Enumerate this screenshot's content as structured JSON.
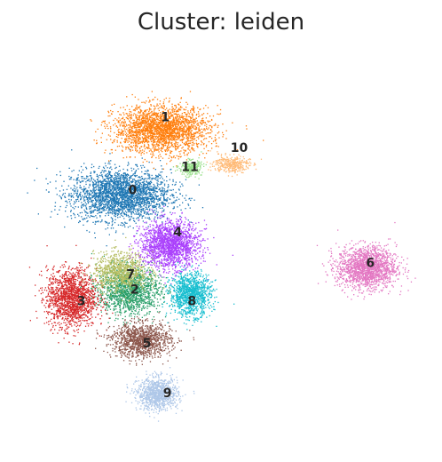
{
  "title": "Cluster: leiden",
  "chart_data": {
    "type": "scatter",
    "title": "Cluster: leiden",
    "xlabel": "",
    "ylabel": "",
    "xlim": [
      0,
      100
    ],
    "ylim": [
      0,
      100
    ],
    "legend": "on data",
    "grid": false,
    "series": [
      {
        "name": "0",
        "color": "#1f77b4",
        "center": [
          25.0,
          62.0
        ],
        "spread": [
          11.0,
          6.0
        ],
        "n": 2600
      },
      {
        "name": "1",
        "color": "#ff7f0e",
        "center": [
          35.0,
          79.0
        ],
        "spread": [
          10.5,
          5.5
        ],
        "n": 2400
      },
      {
        "name": "2",
        "color": "#279e68",
        "center": [
          27.0,
          37.0
        ],
        "spread": [
          7.0,
          5.5
        ],
        "n": 1400
      },
      {
        "name": "3",
        "color": "#d62728",
        "center": [
          13.0,
          35.0
        ],
        "spread": [
          5.5,
          7.0
        ],
        "n": 1600
      },
      {
        "name": "4",
        "color": "#aa40fc",
        "center": [
          37.0,
          49.0
        ],
        "spread": [
          6.5,
          5.5
        ],
        "n": 1800
      },
      {
        "name": "5",
        "color": "#8c564b",
        "center": [
          30.0,
          24.0
        ],
        "spread": [
          6.5,
          4.0
        ],
        "n": 1200
      },
      {
        "name": "6",
        "color": "#e377c2",
        "center": [
          85.0,
          43.0
        ],
        "spread": [
          6.5,
          5.0
        ],
        "n": 1700
      },
      {
        "name": "7",
        "color": "#b5bd61",
        "center": [
          25.0,
          42.0
        ],
        "spread": [
          6.0,
          4.5
        ],
        "n": 900
      },
      {
        "name": "8",
        "color": "#17becf",
        "center": [
          42.0,
          36.0
        ],
        "spread": [
          4.5,
          5.0
        ],
        "n": 1200
      },
      {
        "name": "9",
        "color": "#aec7e8",
        "center": [
          34.0,
          10.0
        ],
        "spread": [
          4.5,
          3.8
        ],
        "n": 1000
      },
      {
        "name": "10",
        "color": "#ffbb78",
        "center": [
          52.0,
          70.0
        ],
        "spread": [
          4.0,
          2.0
        ],
        "n": 350
      },
      {
        "name": "11",
        "color": "#98df8a",
        "center": [
          42.0,
          69.0
        ],
        "spread": [
          2.5,
          1.8
        ],
        "n": 250
      }
    ],
    "labels": [
      {
        "text": "1",
        "pos": [
          36.0,
          82.0
        ]
      },
      {
        "text": "10",
        "pos": [
          54.0,
          74.0
        ]
      },
      {
        "text": "11",
        "pos": [
          42.0,
          69.0
        ]
      },
      {
        "text": "0",
        "pos": [
          28.0,
          63.0
        ]
      },
      {
        "text": "4",
        "pos": [
          39.0,
          52.0
        ]
      },
      {
        "text": "6",
        "pos": [
          86.0,
          44.0
        ]
      },
      {
        "text": "7",
        "pos": [
          27.5,
          41.0
        ]
      },
      {
        "text": "2",
        "pos": [
          28.5,
          37.0
        ]
      },
      {
        "text": "8",
        "pos": [
          42.5,
          34.0
        ]
      },
      {
        "text": "3",
        "pos": [
          15.5,
          34.0
        ]
      },
      {
        "text": "5",
        "pos": [
          31.5,
          23.0
        ]
      },
      {
        "text": "9",
        "pos": [
          36.5,
          10.0
        ]
      }
    ]
  }
}
